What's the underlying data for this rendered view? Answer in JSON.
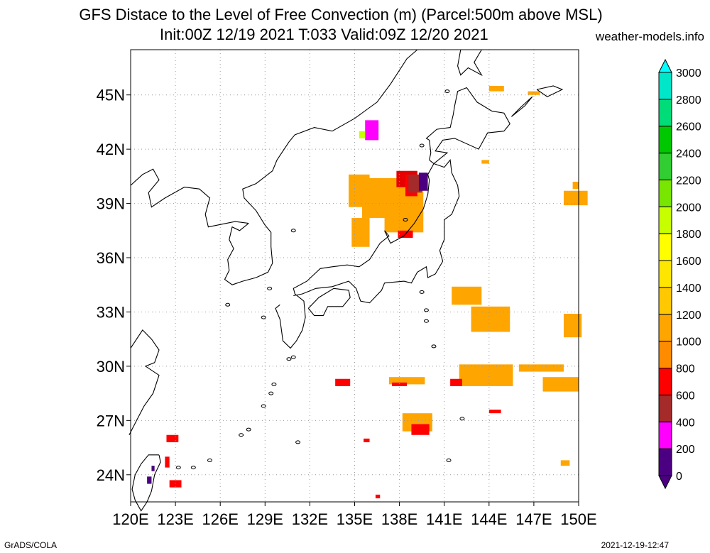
{
  "title_line1": "GFS Distace to the Level of Free Convection (m) (Parcel:500m above MSL)",
  "title_line2": "Init:00Z 12/19 2021 T:033 Valid:09Z 12/20 2021",
  "site": "weather-models.info",
  "footer_left": "GrADS/COLA",
  "footer_right": "2021-12-19-12:47",
  "lat_labels": [
    "24N",
    "27N",
    "30N",
    "33N",
    "36N",
    "39N",
    "42N",
    "45N"
  ],
  "lon_labels": [
    "120E",
    "123E",
    "126E",
    "129E",
    "132E",
    "135E",
    "138E",
    "141E",
    "144E",
    "147E",
    "150E"
  ],
  "colorbar": {
    "labels": [
      "0",
      "200",
      "400",
      "600",
      "800",
      "1000",
      "1200",
      "1400",
      "1600",
      "1800",
      "2000",
      "2200",
      "2400",
      "2600",
      "2800",
      "3000"
    ],
    "colors": [
      "#4b0082",
      "#ff00ff",
      "#a52a2a",
      "#ff0000",
      "#ff8c00",
      "#ffa500",
      "#ffc800",
      "#ffe600",
      "#ffff00",
      "#c8ff00",
      "#78e600",
      "#32cd32",
      "#00c800",
      "#00dc78",
      "#00e6c8",
      "#00ffff"
    ]
  },
  "map": {
    "lon_range": [
      120,
      150
    ],
    "lat_range": [
      22.5,
      47.5
    ],
    "patches": [
      {
        "lon": 134.6,
        "lat": 38.8,
        "w": 1.4,
        "h": 1.8,
        "c": "#ffa500"
      },
      {
        "lon": 135.5,
        "lat": 38.2,
        "w": 2.5,
        "h": 2.2,
        "c": "#ffa500"
      },
      {
        "lon": 137.0,
        "lat": 37.4,
        "w": 2.6,
        "h": 2.6,
        "c": "#ffa500"
      },
      {
        "lon": 134.8,
        "lat": 36.6,
        "w": 1.2,
        "h": 1.6,
        "c": "#ffa500"
      },
      {
        "lon": 137.8,
        "lat": 39.9,
        "w": 1.4,
        "h": 0.9,
        "c": "#e60000"
      },
      {
        "lon": 138.4,
        "lat": 39.4,
        "w": 0.8,
        "h": 1.2,
        "c": "#ff0000"
      },
      {
        "lon": 138.6,
        "lat": 39.6,
        "w": 0.9,
        "h": 1.0,
        "c": "#a52a2a"
      },
      {
        "lon": 139.3,
        "lat": 39.7,
        "w": 0.6,
        "h": 1.0,
        "c": "#4b0082"
      },
      {
        "lon": 137.9,
        "lat": 37.1,
        "w": 1.0,
        "h": 0.4,
        "c": "#ff0000"
      },
      {
        "lon": 135.7,
        "lat": 42.5,
        "w": 0.9,
        "h": 1.1,
        "c": "#ff00ff"
      },
      {
        "lon": 135.3,
        "lat": 42.6,
        "w": 0.4,
        "h": 0.4,
        "c": "#c8ff00"
      },
      {
        "lon": 141.5,
        "lat": 33.4,
        "w": 2.0,
        "h": 1.0,
        "c": "#ffa500"
      },
      {
        "lon": 142.8,
        "lat": 31.9,
        "w": 2.6,
        "h": 1.4,
        "c": "#ffa500"
      },
      {
        "lon": 149.0,
        "lat": 31.6,
        "w": 1.2,
        "h": 1.3,
        "c": "#ffa500"
      },
      {
        "lon": 149.0,
        "lat": 38.9,
        "w": 1.6,
        "h": 0.8,
        "c": "#ffa500"
      },
      {
        "lon": 142.0,
        "lat": 28.9,
        "w": 3.6,
        "h": 1.2,
        "c": "#ffa500"
      },
      {
        "lon": 141.4,
        "lat": 28.9,
        "w": 0.8,
        "h": 0.4,
        "c": "#ff0000"
      },
      {
        "lon": 147.6,
        "lat": 28.6,
        "w": 2.4,
        "h": 0.8,
        "c": "#ffa500"
      },
      {
        "lon": 138.2,
        "lat": 26.4,
        "w": 2.0,
        "h": 1.0,
        "c": "#ffa500"
      },
      {
        "lon": 138.8,
        "lat": 26.2,
        "w": 1.2,
        "h": 0.6,
        "c": "#ff0000"
      },
      {
        "lon": 137.3,
        "lat": 29.0,
        "w": 2.4,
        "h": 0.4,
        "c": "#ffa500"
      },
      {
        "lon": 137.5,
        "lat": 28.9,
        "w": 1.0,
        "h": 0.2,
        "c": "#ff0000"
      },
      {
        "lon": 133.7,
        "lat": 28.9,
        "w": 1.0,
        "h": 0.4,
        "c": "#ff0000"
      },
      {
        "lon": 135.6,
        "lat": 25.8,
        "w": 0.4,
        "h": 0.2,
        "c": "#ff0000"
      },
      {
        "lon": 144.0,
        "lat": 27.4,
        "w": 0.8,
        "h": 0.2,
        "c": "#ff0000"
      },
      {
        "lon": 146.0,
        "lat": 29.7,
        "w": 3.0,
        "h": 0.4,
        "c": "#ffa500"
      },
      {
        "lon": 148.8,
        "lat": 24.5,
        "w": 0.6,
        "h": 0.3,
        "c": "#ffa500"
      },
      {
        "lon": 146.6,
        "lat": 45.0,
        "w": 0.8,
        "h": 0.2,
        "c": "#ffa500"
      },
      {
        "lon": 144.0,
        "lat": 45.2,
        "w": 1.0,
        "h": 0.3,
        "c": "#ffa500"
      },
      {
        "lon": 149.6,
        "lat": 39.8,
        "w": 0.4,
        "h": 0.4,
        "c": "#ffa500"
      },
      {
        "lon": 143.5,
        "lat": 41.2,
        "w": 0.5,
        "h": 0.2,
        "c": "#ffa500"
      },
      {
        "lon": 122.4,
        "lat": 25.8,
        "w": 0.8,
        "h": 0.4,
        "c": "#ff0000"
      },
      {
        "lon": 122.6,
        "lat": 23.3,
        "w": 0.8,
        "h": 0.4,
        "c": "#ff0000"
      },
      {
        "lon": 122.3,
        "lat": 24.4,
        "w": 0.3,
        "h": 0.6,
        "c": "#ff0000"
      },
      {
        "lon": 121.1,
        "lat": 23.5,
        "w": 0.3,
        "h": 0.4,
        "c": "#4b0082"
      },
      {
        "lon": 121.4,
        "lat": 24.2,
        "w": 0.2,
        "h": 0.3,
        "c": "#4b0082"
      },
      {
        "lon": 136.4,
        "lat": 22.7,
        "w": 0.3,
        "h": 0.2,
        "c": "#ff0000"
      }
    ],
    "coastlines": [
      [
        [
          127.9,
          37.9
        ],
        [
          127.3,
          37.5
        ],
        [
          126.8,
          37.7
        ],
        [
          126.6,
          37.0
        ],
        [
          126.9,
          36.5
        ],
        [
          126.5,
          35.9
        ],
        [
          126.6,
          35.3
        ],
        [
          126.3,
          34.8
        ],
        [
          126.8,
          34.5
        ],
        [
          127.5,
          34.7
        ],
        [
          128.4,
          34.9
        ],
        [
          129.2,
          35.2
        ],
        [
          129.5,
          35.7
        ],
        [
          129.4,
          36.6
        ],
        [
          129.4,
          37.4
        ],
        [
          129.0,
          37.8
        ],
        [
          128.4,
          38.6
        ],
        [
          127.6,
          39.3
        ],
        [
          127.5,
          39.8
        ],
        [
          128.4,
          40.1
        ],
        [
          129.5,
          40.8
        ],
        [
          129.8,
          41.4
        ],
        [
          130.6,
          42.4
        ],
        [
          131.0,
          42.8
        ],
        [
          132.3,
          43.2
        ],
        [
          133.5,
          43.0
        ],
        [
          135.0,
          43.7
        ],
        [
          136.5,
          44.6
        ],
        [
          137.4,
          45.6
        ],
        [
          138.5,
          47.0
        ],
        [
          139.2,
          47.5
        ]
      ],
      [
        [
          127.9,
          37.9
        ],
        [
          127.0,
          38.0
        ],
        [
          125.2,
          37.7
        ],
        [
          125.0,
          38.4
        ],
        [
          125.3,
          39.3
        ],
        [
          124.6,
          39.8
        ],
        [
          123.6,
          39.9
        ],
        [
          122.3,
          39.3
        ],
        [
          121.4,
          38.8
        ],
        [
          121.2,
          39.6
        ],
        [
          121.9,
          40.3
        ],
        [
          121.5,
          40.9
        ],
        [
          120.8,
          40.6
        ],
        [
          120.0,
          40.0
        ]
      ],
      [
        [
          130.0,
          33.4
        ],
        [
          129.7,
          33.2
        ],
        [
          130.0,
          32.6
        ],
        [
          130.2,
          31.4
        ],
        [
          130.7,
          31.0
        ],
        [
          131.1,
          31.4
        ],
        [
          131.5,
          32.0
        ],
        [
          131.7,
          32.7
        ],
        [
          131.6,
          33.6
        ],
        [
          131.0,
          34.0
        ],
        [
          130.9,
          34.3
        ],
        [
          131.8,
          34.7
        ],
        [
          132.7,
          35.4
        ],
        [
          133.5,
          35.5
        ],
        [
          134.5,
          35.6
        ],
        [
          135.3,
          35.5
        ],
        [
          136.0,
          35.9
        ],
        [
          136.7,
          36.8
        ],
        [
          137.3,
          37.2
        ],
        [
          137.0,
          37.5
        ],
        [
          137.4,
          36.8
        ],
        [
          138.3,
          37.2
        ],
        [
          139.0,
          37.9
        ],
        [
          139.6,
          38.7
        ],
        [
          139.9,
          39.5
        ],
        [
          140.0,
          40.3
        ],
        [
          139.9,
          40.6
        ],
        [
          140.3,
          41.2
        ],
        [
          141.0,
          41.0
        ],
        [
          141.4,
          41.4
        ],
        [
          141.5,
          40.7
        ],
        [
          141.9,
          40.0
        ],
        [
          142.0,
          39.4
        ],
        [
          141.5,
          38.4
        ],
        [
          141.0,
          38.1
        ],
        [
          141.0,
          37.0
        ],
        [
          140.7,
          36.4
        ],
        [
          140.9,
          35.8
        ],
        [
          140.4,
          35.1
        ],
        [
          139.9,
          34.9
        ],
        [
          139.8,
          35.5
        ],
        [
          139.2,
          35.2
        ],
        [
          138.8,
          34.6
        ],
        [
          138.3,
          34.7
        ],
        [
          137.0,
          34.6
        ],
        [
          136.8,
          34.2
        ],
        [
          136.0,
          33.5
        ],
        [
          135.4,
          33.6
        ],
        [
          135.1,
          34.3
        ],
        [
          134.6,
          34.7
        ],
        [
          133.5,
          34.4
        ],
        [
          132.4,
          34.3
        ],
        [
          131.5,
          34.0
        ],
        [
          130.9,
          33.9
        ]
      ],
      [
        [
          131.9,
          33.2
        ],
        [
          132.3,
          32.8
        ],
        [
          132.9,
          32.8
        ],
        [
          133.2,
          33.3
        ],
        [
          134.2,
          33.3
        ],
        [
          134.7,
          33.8
        ],
        [
          134.6,
          34.2
        ],
        [
          133.6,
          34.3
        ],
        [
          132.6,
          33.8
        ],
        [
          131.9,
          33.2
        ]
      ],
      [
        [
          140.0,
          41.4
        ],
        [
          140.1,
          41.8
        ],
        [
          140.0,
          42.5
        ],
        [
          139.8,
          42.6
        ],
        [
          140.5,
          43.1
        ],
        [
          141.4,
          43.2
        ],
        [
          141.6,
          43.9
        ],
        [
          141.7,
          44.4
        ],
        [
          141.9,
          45.2
        ],
        [
          142.5,
          45.4
        ],
        [
          143.2,
          44.6
        ],
        [
          144.2,
          44.1
        ],
        [
          145.0,
          44.0
        ],
        [
          145.4,
          43.4
        ],
        [
          145.0,
          43.0
        ],
        [
          143.9,
          42.9
        ],
        [
          143.3,
          42.0
        ],
        [
          141.7,
          42.6
        ],
        [
          140.9,
          42.5
        ],
        [
          140.4,
          41.9
        ],
        [
          141.2,
          41.8
        ],
        [
          140.3,
          41.2
        ],
        [
          140.0,
          41.4
        ]
      ],
      [
        [
          121.9,
          25.1
        ],
        [
          122.0,
          24.7
        ],
        [
          121.6,
          24.0
        ],
        [
          121.4,
          23.1
        ],
        [
          121.1,
          22.5
        ],
        [
          120.7,
          22.0
        ],
        [
          120.3,
          22.6
        ],
        [
          120.1,
          23.2
        ],
        [
          120.3,
          24.0
        ],
        [
          120.7,
          24.6
        ],
        [
          121.2,
          25.1
        ],
        [
          121.9,
          25.1
        ]
      ],
      [
        [
          120.0,
          31.0
        ],
        [
          120.8,
          32.0
        ],
        [
          121.4,
          31.5
        ],
        [
          121.9,
          30.9
        ],
        [
          121.6,
          30.2
        ],
        [
          121.0,
          30.0
        ],
        [
          121.9,
          29.5
        ],
        [
          121.5,
          28.5
        ],
        [
          120.9,
          27.8
        ],
        [
          120.4,
          27.0
        ],
        [
          119.9,
          26.2
        ]
      ],
      [
        [
          143.5,
          47.5
        ],
        [
          143.0,
          46.8
        ],
        [
          143.5,
          46.1
        ],
        [
          142.6,
          46.5
        ],
        [
          142.1,
          46.1
        ],
        [
          141.9,
          46.6
        ],
        [
          142.1,
          47.5
        ]
      ],
      [
        [
          147.2,
          45.3
        ],
        [
          148.3,
          45.5
        ],
        [
          148.9,
          45.3
        ],
        [
          147.9,
          44.9
        ],
        [
          147.2,
          45.3
        ]
      ],
      [
        [
          145.5,
          43.8
        ],
        [
          146.1,
          44.3
        ],
        [
          146.9,
          44.9
        ],
        [
          146.4,
          44.4
        ],
        [
          145.5,
          43.8
        ]
      ]
    ],
    "islands": [
      [
        126.5,
        33.4
      ],
      [
        129.3,
        34.3
      ],
      [
        128.9,
        32.7
      ],
      [
        130.6,
        30.4
      ],
      [
        130.9,
        30.5
      ],
      [
        129.6,
        29.0
      ],
      [
        129.4,
        28.5
      ],
      [
        128.9,
        27.8
      ],
      [
        127.9,
        26.5
      ],
      [
        127.4,
        26.2
      ],
      [
        124.2,
        24.4
      ],
      [
        125.3,
        24.8
      ],
      [
        123.2,
        24.4
      ],
      [
        131.2,
        25.8
      ],
      [
        139.5,
        34.1
      ],
      [
        139.8,
        33.1
      ],
      [
        139.8,
        32.5
      ],
      [
        140.3,
        31.1
      ],
      [
        142.2,
        27.1
      ],
      [
        141.3,
        24.8
      ],
      [
        130.9,
        37.5
      ],
      [
        139.5,
        42.2
      ],
      [
        141.2,
        45.2
      ],
      [
        138.4,
        38.1
      ]
    ]
  }
}
